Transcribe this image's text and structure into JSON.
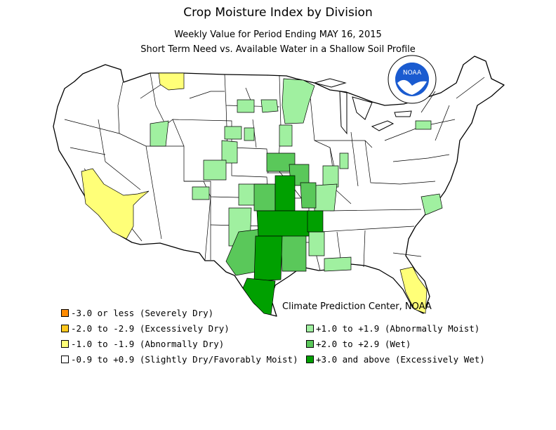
{
  "header": {
    "title": "Crop Moisture Index by Division",
    "subtitle1": "Weekly Value for Period Ending MAY 16, 2015",
    "subtitle2": "Short Term Need vs. Available Water in a Shallow Soil Profile"
  },
  "logo": {
    "text": "NOAA",
    "icon": "noaa-seal-icon"
  },
  "credit": "Climate Prediction Center, NOAA",
  "legend": [
    {
      "label": "-3.0 or less (Severely Dry)",
      "color": "#ff8c00"
    },
    {
      "label": "-2.0 to -2.9 (Excessively Dry)",
      "color": "#ffc81e"
    },
    {
      "label": "-1.0 to -1.9 (Abnormally Dry)",
      "color": "#ffff78"
    },
    {
      "label": "-0.9 to +0.9 (Slightly Dry/Favorably Moist)",
      "color": "#ffffff"
    },
    {
      "label": "+1.0 to +1.9 (Abnormally Moist)",
      "color": "#a0f0a0"
    },
    {
      "label": "+2.0 to +2.9 (Wet)",
      "color": "#5ac85a"
    },
    {
      "label": "+3.0 and above (Excessively Wet)",
      "color": "#00a000"
    }
  ]
}
